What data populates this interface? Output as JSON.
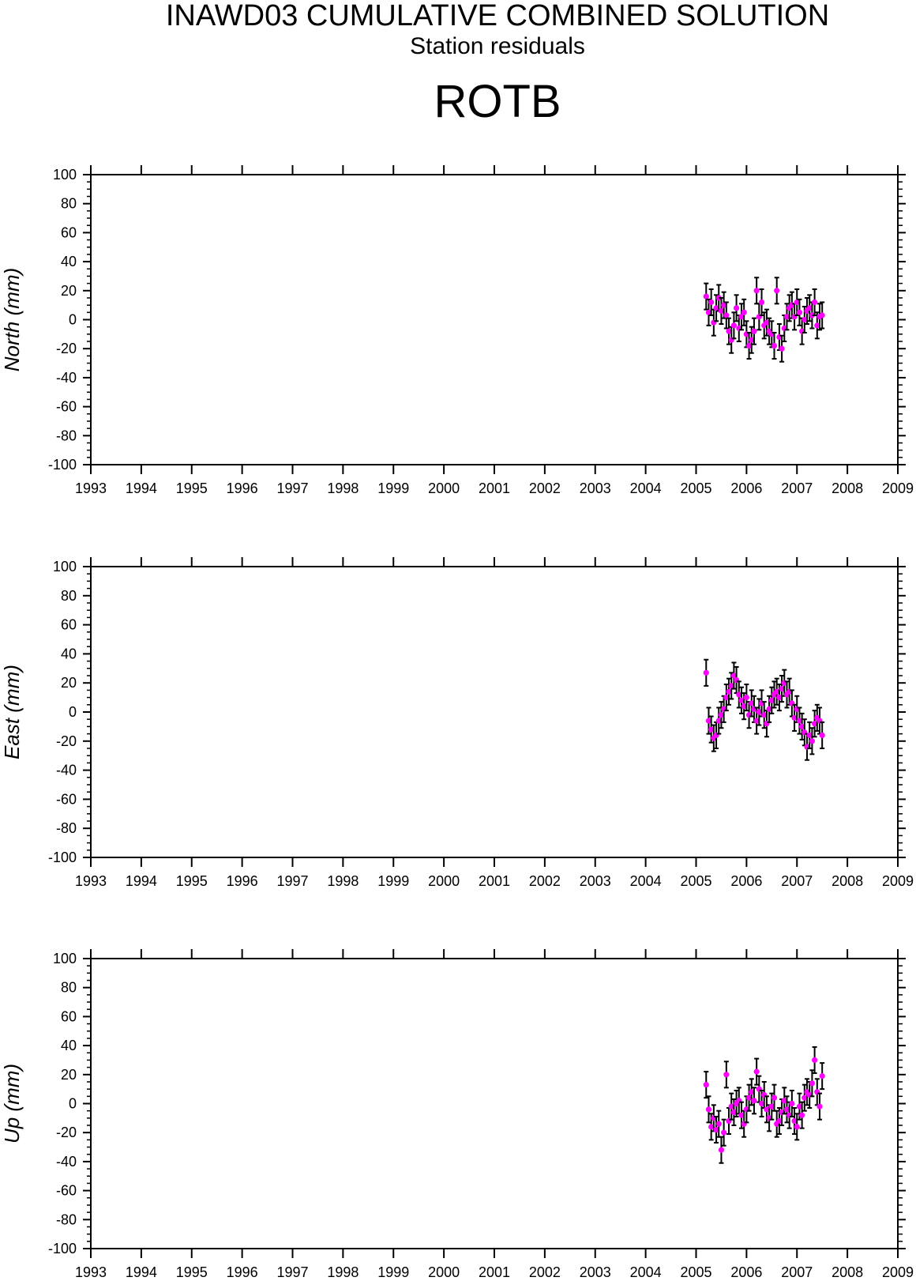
{
  "header": {
    "title": "INAWD03 CUMULATIVE COMBINED SOLUTION",
    "subtitle": "Station residuals",
    "station": "ROTB"
  },
  "colors": {
    "points": "#ff00ff",
    "errorbars": "#000000",
    "axes": "#000000"
  },
  "chart_data": [
    {
      "type": "scatter",
      "name": "north",
      "ylabel": "North (mm)",
      "xlim": [
        1993,
        2009
      ],
      "ylim": [
        -100,
        100
      ],
      "xticks": [
        "1993",
        "1994",
        "1995",
        "1996",
        "1997",
        "1998",
        "1999",
        "2000",
        "2001",
        "2002",
        "2003",
        "2004",
        "2005",
        "2006",
        "2007",
        "2008",
        "2009"
      ],
      "yticks": [
        "100",
        "80",
        "60",
        "40",
        "20",
        "0",
        "-20",
        "-40",
        "-60",
        "-80",
        "-100"
      ],
      "grid": false,
      "error_bar_mm": 9,
      "x": [
        2005.2,
        2005.25,
        2005.3,
        2005.35,
        2005.4,
        2005.45,
        2005.5,
        2005.55,
        2005.6,
        2005.65,
        2005.7,
        2005.75,
        2005.8,
        2005.85,
        2005.9,
        2005.95,
        2006.0,
        2006.05,
        2006.1,
        2006.15,
        2006.2,
        2006.25,
        2006.3,
        2006.35,
        2006.4,
        2006.45,
        2006.5,
        2006.55,
        2006.6,
        2006.65,
        2006.7,
        2006.75,
        2006.8,
        2006.85,
        2006.9,
        2006.95,
        2007.0,
        2007.05,
        2007.1,
        2007.15,
        2007.2,
        2007.25,
        2007.3,
        2007.35,
        2007.4,
        2007.45,
        2007.5
      ],
      "y": [
        16,
        5,
        12,
        -2,
        8,
        15,
        6,
        10,
        3,
        -8,
        -14,
        -4,
        8,
        -6,
        2,
        5,
        -10,
        -18,
        -14,
        -8,
        20,
        2,
        12,
        -4,
        -2,
        -8,
        -10,
        -18,
        20,
        -12,
        -20,
        -6,
        2,
        8,
        10,
        2,
        12,
        5,
        -8,
        0,
        6,
        8,
        3,
        12,
        -4,
        2,
        3
      ]
    },
    {
      "type": "scatter",
      "name": "east",
      "ylabel": "East (mm)",
      "xlim": [
        1993,
        2009
      ],
      "ylim": [
        -100,
        100
      ],
      "xticks": [
        "1993",
        "1994",
        "1995",
        "1996",
        "1997",
        "1998",
        "1999",
        "2000",
        "2001",
        "2002",
        "2003",
        "2004",
        "2005",
        "2006",
        "2007",
        "2008",
        "2009"
      ],
      "yticks": [
        "100",
        "80",
        "60",
        "40",
        "20",
        "0",
        "-20",
        "-40",
        "-60",
        "-80",
        "-100"
      ],
      "grid": false,
      "error_bar_mm": 9,
      "x": [
        2005.2,
        2005.25,
        2005.3,
        2005.35,
        2005.4,
        2005.45,
        2005.5,
        2005.55,
        2005.6,
        2005.65,
        2005.7,
        2005.75,
        2005.8,
        2005.85,
        2005.9,
        2005.95,
        2006.0,
        2006.05,
        2006.1,
        2006.15,
        2006.2,
        2006.25,
        2006.3,
        2006.35,
        2006.4,
        2006.45,
        2006.5,
        2006.55,
        2006.6,
        2006.65,
        2006.7,
        2006.75,
        2006.8,
        2006.85,
        2006.9,
        2006.95,
        2007.0,
        2007.05,
        2007.1,
        2007.15,
        2007.2,
        2007.25,
        2007.3,
        2007.35,
        2007.4,
        2007.45,
        2007.5
      ],
      "y": [
        27,
        -6,
        -12,
        -18,
        -16,
        -6,
        -2,
        2,
        10,
        14,
        18,
        25,
        22,
        12,
        8,
        4,
        10,
        -2,
        6,
        2,
        -6,
        0,
        6,
        -2,
        -8,
        2,
        8,
        12,
        14,
        10,
        16,
        20,
        12,
        14,
        6,
        -4,
        2,
        -6,
        -10,
        -14,
        -24,
        -16,
        -20,
        -8,
        -4,
        -6,
        -16
      ]
    },
    {
      "type": "scatter",
      "name": "up",
      "ylabel": "Up (mm)",
      "xlim": [
        1993,
        2009
      ],
      "ylim": [
        -100,
        100
      ],
      "xticks": [
        "1993",
        "1994",
        "1995",
        "1996",
        "1997",
        "1998",
        "1999",
        "2000",
        "2001",
        "2002",
        "2003",
        "2004",
        "2005",
        "2006",
        "2007",
        "2008",
        "2009"
      ],
      "yticks": [
        "100",
        "80",
        "60",
        "40",
        "20",
        "0",
        "-20",
        "-40",
        "-60",
        "-80",
        "-100"
      ],
      "grid": false,
      "error_bar_mm": 9,
      "x": [
        2005.2,
        2005.25,
        2005.3,
        2005.35,
        2005.4,
        2005.45,
        2005.5,
        2005.55,
        2005.6,
        2005.65,
        2005.7,
        2005.75,
        2005.8,
        2005.85,
        2005.9,
        2005.95,
        2006.0,
        2006.05,
        2006.1,
        2006.15,
        2006.2,
        2006.25,
        2006.3,
        2006.35,
        2006.4,
        2006.45,
        2006.5,
        2006.55,
        2006.6,
        2006.65,
        2006.7,
        2006.75,
        2006.8,
        2006.85,
        2006.9,
        2006.95,
        2007.0,
        2007.05,
        2007.1,
        2007.15,
        2007.2,
        2007.25,
        2007.3,
        2007.35,
        2007.4,
        2007.45,
        2007.5
      ],
      "y": [
        13,
        -4,
        -16,
        -10,
        -18,
        -14,
        -32,
        -20,
        20,
        -12,
        -2,
        -6,
        0,
        2,
        -8,
        -14,
        -4,
        4,
        8,
        2,
        22,
        10,
        0,
        6,
        -4,
        -10,
        -2,
        4,
        -14,
        -12,
        -6,
        2,
        -4,
        -8,
        0,
        -12,
        -16,
        -2,
        -8,
        4,
        8,
        6,
        14,
        30,
        8,
        -2,
        19
      ]
    }
  ]
}
